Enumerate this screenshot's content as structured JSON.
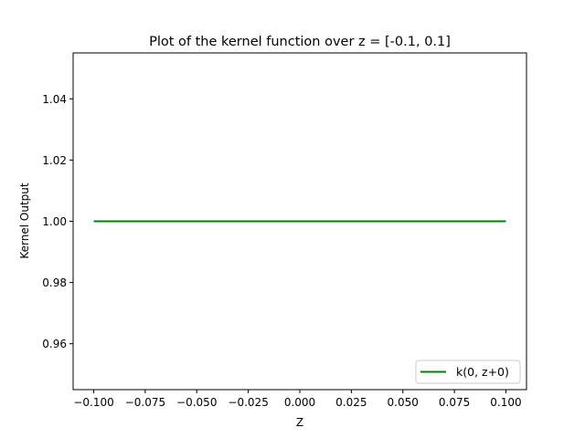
{
  "chart_data": {
    "type": "line",
    "title": "Plot of the kernel function over z = [-0.1, 0.1]",
    "xlabel": "Z",
    "ylabel": "Kernel Output",
    "xlim": [
      -0.11,
      0.11
    ],
    "ylim": [
      0.945,
      1.055
    ],
    "x_ticks": [
      -0.1,
      -0.075,
      -0.05,
      -0.025,
      0.0,
      0.025,
      0.05,
      0.075,
      0.1
    ],
    "x_tick_labels": [
      "−0.100",
      "−0.075",
      "−0.050",
      "−0.025",
      "0.000",
      "0.025",
      "0.050",
      "0.075",
      "0.100"
    ],
    "y_ticks": [
      0.96,
      0.98,
      1.0,
      1.02,
      1.04
    ],
    "y_tick_labels": [
      "0.96",
      "0.98",
      "1.00",
      "1.02",
      "1.04"
    ],
    "grid": false,
    "legend_position": "lower-right",
    "series": [
      {
        "name": "k(0, z+0)",
        "color": "#008000",
        "x": [
          -0.1,
          0.1
        ],
        "y": [
          1.0,
          1.0
        ]
      }
    ]
  }
}
